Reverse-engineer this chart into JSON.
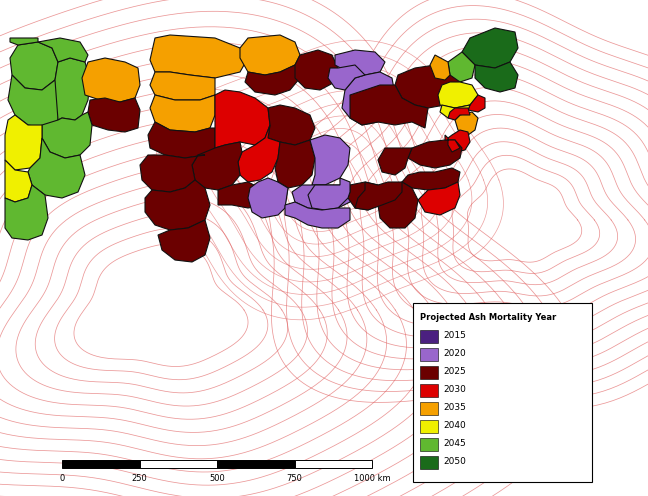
{
  "legend_title": "Projected Ash Mortality Year",
  "legend_entries": [
    {
      "label": "2015",
      "color": "#4B2080"
    },
    {
      "label": "2020",
      "color": "#9966CC"
    },
    {
      "label": "2025",
      "color": "#6B0000"
    },
    {
      "label": "2030",
      "color": "#DD0000"
    },
    {
      "label": "2035",
      "color": "#F5A000"
    },
    {
      "label": "2040",
      "color": "#F0F000"
    },
    {
      "label": "2045",
      "color": "#60B830"
    },
    {
      "label": "2050",
      "color": "#1A6B1A"
    }
  ],
  "scalebar_ticks": [
    "0",
    "250",
    "500",
    "750",
    "1000 km"
  ],
  "background_color": "#FFFFFF",
  "contour_color": "#E06060",
  "border_color": "#000000",
  "fig_width": 6.48,
  "fig_height": 4.96,
  "dpi": 100
}
